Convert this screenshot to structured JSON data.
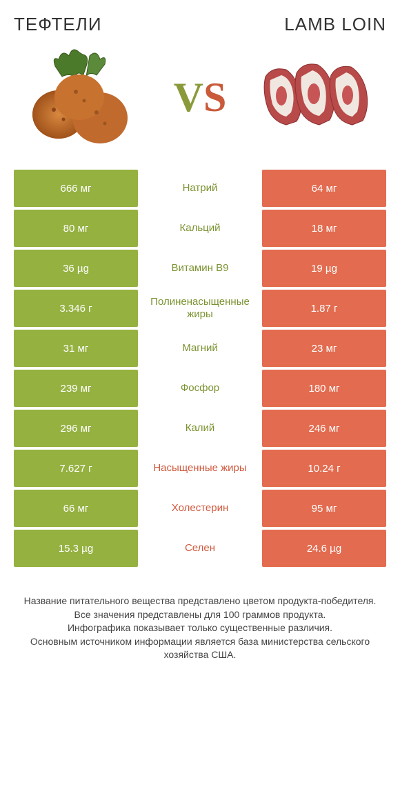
{
  "header": {
    "left_title": "ТЕФТЕЛИ",
    "right_title": "LAMB LOIN",
    "vs_v": "V",
    "vs_s": "S"
  },
  "colors": {
    "green": "#95b140",
    "orange": "#e36b4f",
    "mid_green": "#7a9230",
    "mid_orange": "#d05a3e",
    "background": "#ffffff",
    "text": "#333333"
  },
  "typography": {
    "title_fontsize": 26,
    "vs_fontsize": 60,
    "cell_fontsize": 15,
    "footer_fontsize": 14
  },
  "table": {
    "rows": [
      {
        "left": "666 мг",
        "mid": "Натрий",
        "right": "64 мг",
        "winner": "left"
      },
      {
        "left": "80 мг",
        "mid": "Кальций",
        "right": "18 мг",
        "winner": "left"
      },
      {
        "left": "36 µg",
        "mid": "Витамин B9",
        "right": "19 µg",
        "winner": "left"
      },
      {
        "left": "3.346 г",
        "mid": "Полиненасыщенные жиры",
        "right": "1.87 г",
        "winner": "left"
      },
      {
        "left": "31 мг",
        "mid": "Магний",
        "right": "23 мг",
        "winner": "left"
      },
      {
        "left": "239 мг",
        "mid": "Фосфор",
        "right": "180 мг",
        "winner": "left"
      },
      {
        "left": "296 мг",
        "mid": "Калий",
        "right": "246 мг",
        "winner": "left"
      },
      {
        "left": "7.627 г",
        "mid": "Насыщенные жиры",
        "right": "10.24 г",
        "winner": "right"
      },
      {
        "left": "66 мг",
        "mid": "Холестерин",
        "right": "95 мг",
        "winner": "right"
      },
      {
        "left": "15.3 µg",
        "mid": "Селен",
        "right": "24.6 µg",
        "winner": "right"
      }
    ]
  },
  "footer": {
    "line1": "Название питательного вещества представлено цветом продукта-победителя.",
    "line2": "Все значения представлены для 100 граммов продукта.",
    "line3": "Инфографика показывает только существенные различия.",
    "line4": "Основным источником информации является база министерства сельского хозяйства США."
  }
}
